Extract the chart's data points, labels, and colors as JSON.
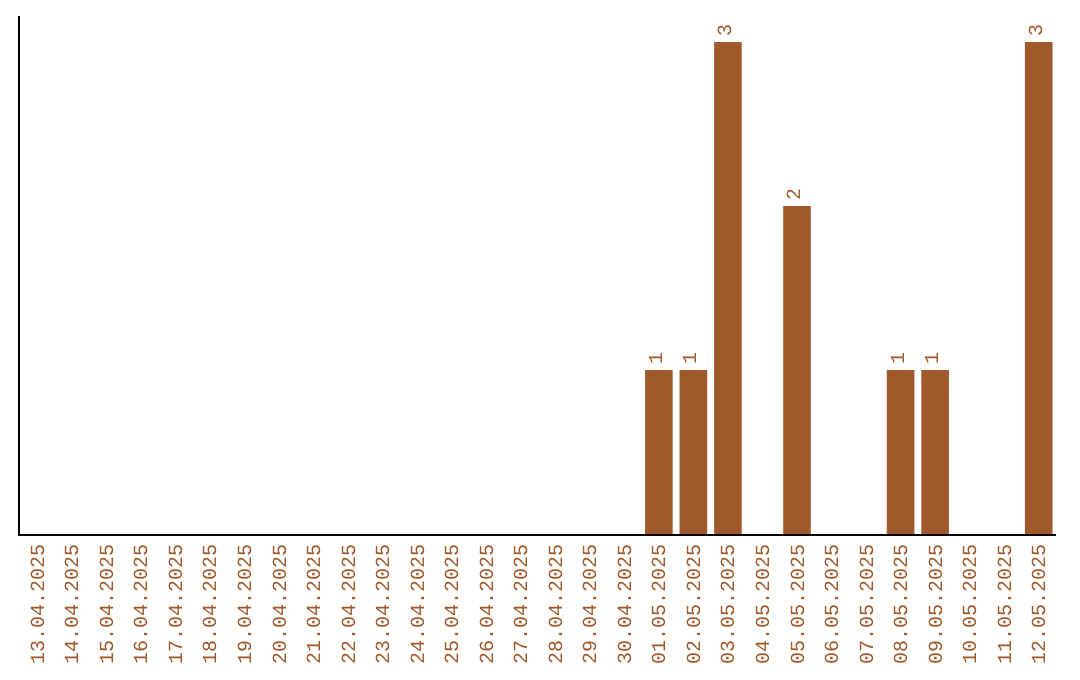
{
  "chart_data": {
    "type": "bar",
    "categories": [
      "13.04.2025",
      "14.04.2025",
      "15.04.2025",
      "16.04.2025",
      "17.04.2025",
      "18.04.2025",
      "19.04.2025",
      "20.04.2025",
      "21.04.2025",
      "22.04.2025",
      "23.04.2025",
      "24.04.2025",
      "25.04.2025",
      "26.04.2025",
      "27.04.2025",
      "28.04.2025",
      "29.04.2025",
      "30.04.2025",
      "01.05.2025",
      "02.05.2025",
      "03.05.2025",
      "04.05.2025",
      "05.05.2025",
      "06.05.2025",
      "07.05.2025",
      "08.05.2025",
      "09.05.2025",
      "10.05.2025",
      "11.05.2025",
      "12.05.2025"
    ],
    "values": [
      null,
      null,
      null,
      null,
      null,
      null,
      null,
      null,
      null,
      null,
      null,
      null,
      null,
      null,
      null,
      null,
      null,
      null,
      1,
      1,
      3,
      null,
      2,
      null,
      null,
      1,
      1,
      null,
      null,
      3
    ],
    "data_labels": true,
    "color": "#a0592a",
    "legend": false
  }
}
